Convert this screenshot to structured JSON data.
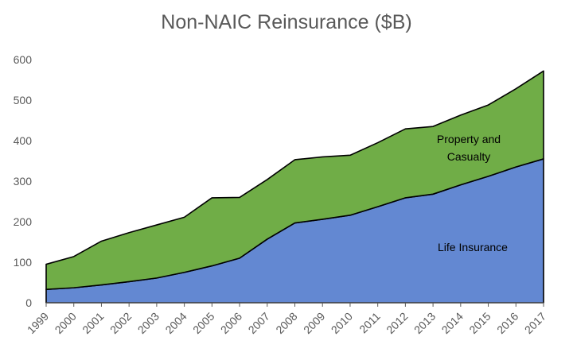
{
  "chart_data": {
    "type": "area",
    "stacked": true,
    "title": "Non-NAIC Reinsurance ($B)",
    "xlabel": "",
    "ylabel": "",
    "ylim": [
      0,
      600
    ],
    "yticks": [
      0,
      100,
      200,
      300,
      400,
      500,
      600
    ],
    "categories": [
      "1999",
      "2000",
      "2001",
      "2002",
      "2003",
      "2004",
      "2005",
      "2006",
      "2007",
      "2008",
      "2009",
      "2010",
      "2011",
      "2012",
      "2013",
      "2014",
      "2015",
      "2016",
      "2017"
    ],
    "series": [
      {
        "name": "Life Insurance",
        "color": "#6388d2",
        "values": [
          33,
          37,
          44,
          52,
          61,
          75,
          91,
          110,
          157,
          197,
          206,
          216,
          237,
          259,
          268,
          291,
          312,
          335,
          355
        ]
      },
      {
        "name": "Property and Casualty",
        "color": "#70ad47",
        "values": [
          62,
          77,
          108,
          121,
          131,
          136,
          168,
          150,
          147,
          156,
          154,
          148,
          158,
          170,
          167,
          172,
          176,
          193,
          217
        ]
      }
    ],
    "annotations": [
      {
        "text": "Property and",
        "series": "Property and Casualty"
      },
      {
        "text": "Casualty",
        "series": "Property and Casualty"
      },
      {
        "text": "Life Insurance",
        "series": "Life Insurance"
      }
    ],
    "grid": false,
    "legend": "none"
  }
}
